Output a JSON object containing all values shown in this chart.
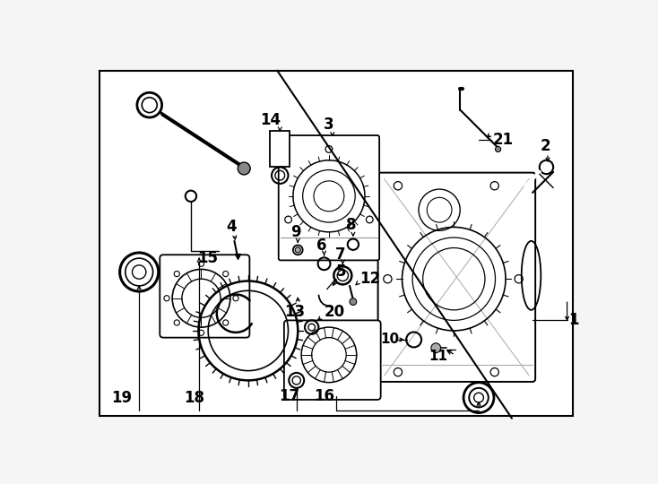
{
  "bg_color": "#f5f5f5",
  "box_facecolor": "#ffffff",
  "line_color": "#000000",
  "figsize": [
    7.34,
    5.4
  ],
  "dpi": 100
}
